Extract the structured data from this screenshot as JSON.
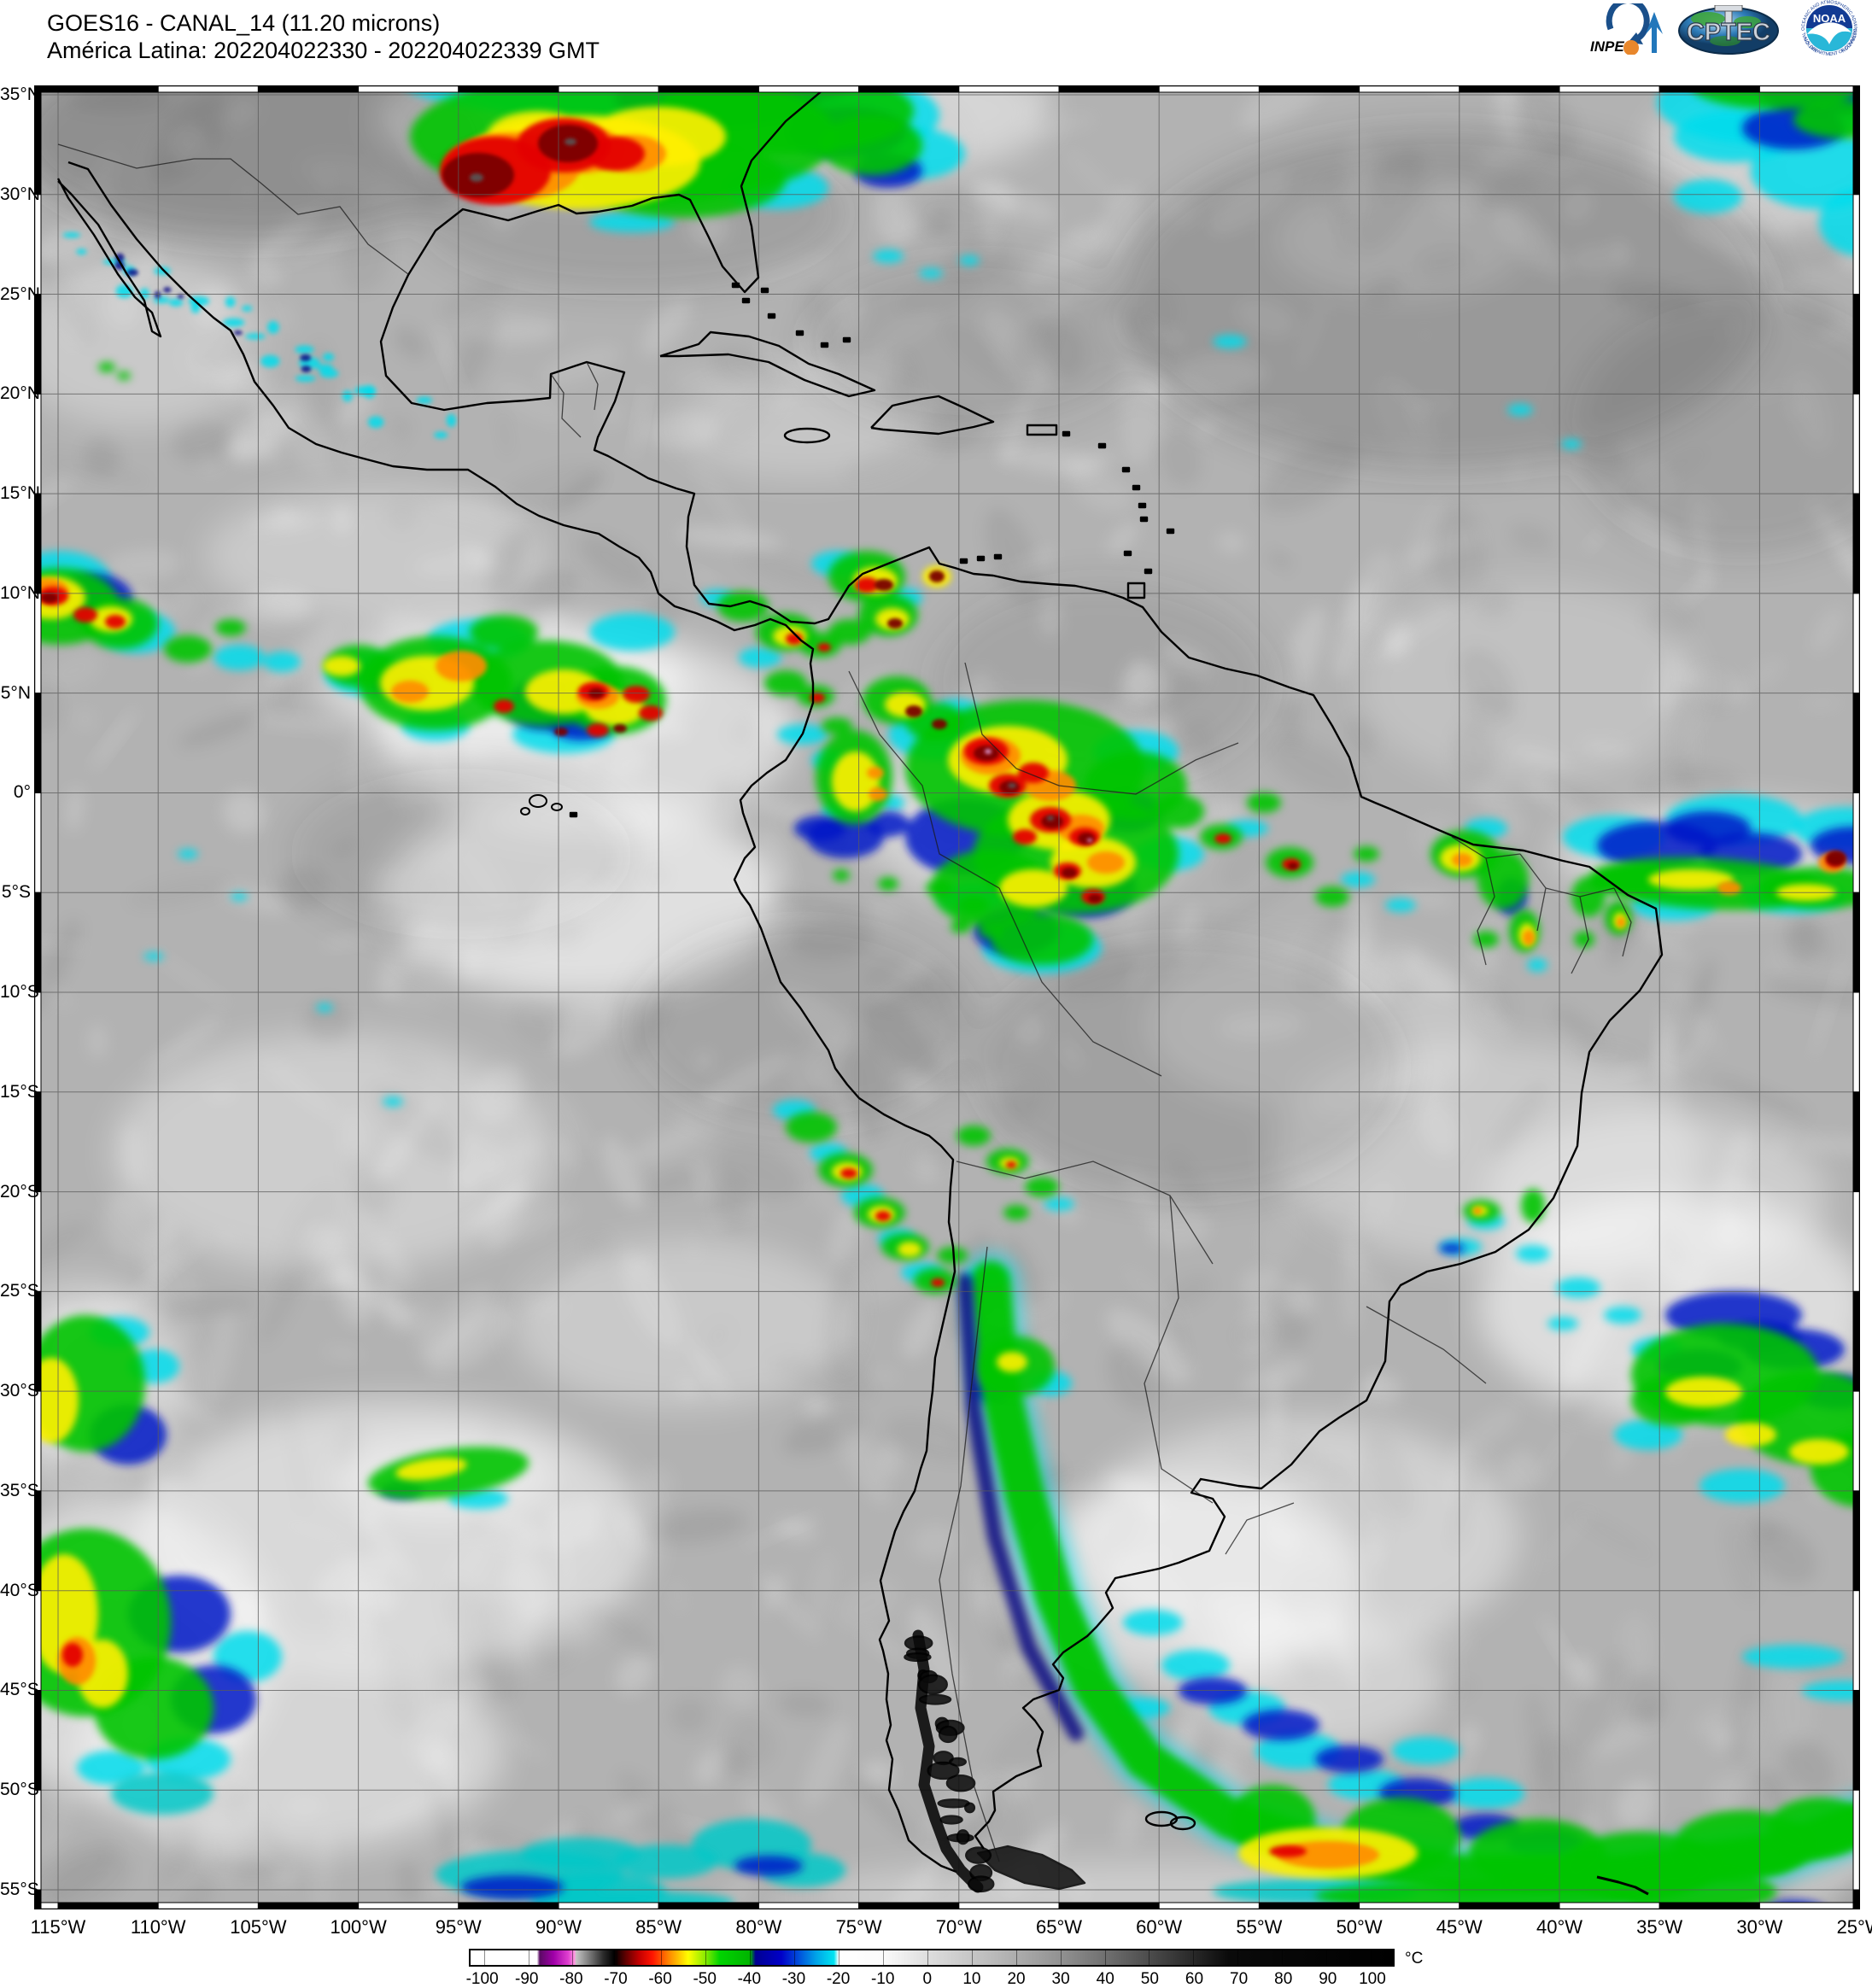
{
  "header": {
    "line1": "GOES16 - CANAL_14 (11.20 microns)",
    "line2": "América Latina: 202204022330 - 202204022339 GMT"
  },
  "logos": {
    "inpe": {
      "label": "INPE"
    },
    "cptec": {
      "label": "CPTEC"
    },
    "noaa": {
      "label": "NOAA",
      "ring_text": "NATIONAL OCEANIC AND ATMOSPHERIC ADMINISTRATION",
      "dept_text": "U.S. DEPARTMENT OF COMMERCE"
    }
  },
  "axes": {
    "lat": [
      "35°N",
      "30°N",
      "25°N",
      "20°N",
      "15°N",
      "10°N",
      "5°N",
      "0°",
      "5°S",
      "10°S",
      "15°S",
      "20°S",
      "25°S",
      "30°S",
      "35°S",
      "40°S",
      "45°S",
      "50°S",
      "55°S"
    ],
    "lon": [
      "115°W",
      "110°W",
      "105°W",
      "100°W",
      "95°W",
      "90°W",
      "85°W",
      "80°W",
      "75°W",
      "70°W",
      "65°W",
      "60°W",
      "55°W",
      "50°W",
      "45°W",
      "40°W",
      "35°W",
      "30°W",
      "25°W"
    ]
  },
  "colorbar": {
    "unit": "°C",
    "tick_values": [
      -100,
      -90,
      -80,
      -70,
      -60,
      -50,
      -40,
      -30,
      -20,
      -10,
      0,
      10,
      20,
      30,
      40,
      50,
      60,
      70,
      80,
      90,
      100
    ],
    "domain": [
      -103,
      105
    ],
    "stops": [
      [
        0,
        "#ffffff"
      ],
      [
        7.2,
        "#ffffff"
      ],
      [
        7.5,
        "#5a0a64"
      ],
      [
        9,
        "#a000a8"
      ],
      [
        10.6,
        "#e040d0"
      ],
      [
        11.3,
        "#ff9ce0"
      ],
      [
        11.45,
        "#c4c4c4"
      ],
      [
        13.2,
        "#6a6a6a"
      ],
      [
        14.4,
        "#2a2a2a"
      ],
      [
        15.6,
        "#000000"
      ],
      [
        16.8,
        "#5e0000"
      ],
      [
        18.3,
        "#c40000"
      ],
      [
        19.7,
        "#ff1400"
      ],
      [
        21.6,
        "#ff8c00"
      ],
      [
        23.6,
        "#ffff00"
      ],
      [
        25.5,
        "#86ea00"
      ],
      [
        27,
        "#00d400"
      ],
      [
        30.3,
        "#00b400"
      ],
      [
        30.9,
        "#000092"
      ],
      [
        33.7,
        "#0000c8"
      ],
      [
        35.6,
        "#0050dc"
      ],
      [
        37.5,
        "#00a4e8"
      ],
      [
        39.4,
        "#00e4f0"
      ],
      [
        39.9,
        "#ffffff"
      ],
      [
        44.7,
        "#fbfbfb"
      ],
      [
        49.5,
        "#dedede"
      ],
      [
        54.3,
        "#c6c6c6"
      ],
      [
        59.1,
        "#adadad"
      ],
      [
        63.9,
        "#929292"
      ],
      [
        68.8,
        "#707070"
      ],
      [
        73.6,
        "#4c4c4c"
      ],
      [
        78.4,
        "#282828"
      ],
      [
        82.2,
        "#0a0a0a"
      ],
      [
        100,
        "#000000"
      ]
    ]
  },
  "palette": {
    "base": "#b2b2b2",
    "cyan": "#00dcec",
    "teal": "#00c8c8",
    "blue": "#0018c8",
    "navy": "#000080",
    "green": "#00c400",
    "green2": "#46e000",
    "yellow": "#ffef00",
    "orange": "#ff8c00",
    "red": "#e40000",
    "darkred": "#7a0000",
    "graycore": "#585858",
    "pink": "#e0a0d8",
    "white": "#ffffff",
    "dark": "#4a4a4a",
    "coast": "#000000",
    "grid": "#5a5a5a"
  }
}
